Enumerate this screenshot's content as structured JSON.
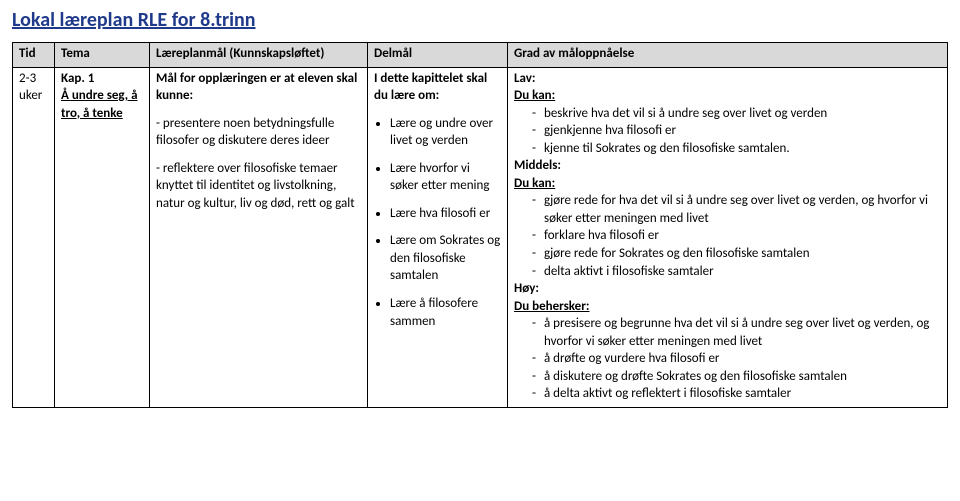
{
  "title": "Lokal læreplan RLE for 8.trinn",
  "headers": {
    "tid": "Tid",
    "tema": "Tema",
    "mal": "Læreplanmål (Kunnskapsløftet)",
    "del": "Delmål",
    "grad": "Grad av måloppnåelse"
  },
  "row": {
    "tid": "2-3 uker",
    "tema": {
      "kap": "Kap. 1",
      "title": "Å undre seg, å tro, å tenke"
    },
    "mal": {
      "intro_bold": "Mål for opplæringen er at eleven skal kunne:",
      "p1": "- presentere noen betydningsfulle filosofer og diskutere deres ideer",
      "p2": "- reflektere over filosofiske temaer knyttet til identitet og livstolkning, natur og kultur, liv og død, rett og galt"
    },
    "del": {
      "intro_bold": "I dette kapittelet skal du lære om:",
      "items": [
        "Lære og undre over livet og verden",
        "Lære hvorfor vi søker etter mening",
        "Lære hva filosofi er",
        "Lære om Sokrates og den filosofiske samtalen",
        "Lære å filosofere sammen"
      ]
    },
    "grad": {
      "lav_label": "Lav:",
      "dukan_label": "Du kan:",
      "lav_items": [
        "beskrive hva det vil si å undre seg over livet og verden",
        "gjenkjenne hva filosofi er",
        "kjenne til Sokrates og den filosofiske samtalen."
      ],
      "middels_label": "Middels:",
      "mid_items": [
        "gjøre rede for hva det vil si å undre seg over livet og verden, og hvorfor vi søker etter meningen med livet",
        "forklare hva filosofi er",
        "gjøre rede for Sokrates og den filosofiske samtalen",
        "delta aktivt i filosofiske samtaler"
      ],
      "hoy_label": "Høy:",
      "dubehersker_label": "Du behersker:",
      "hoy_items": [
        "å presisere og begrunne hva det vil si å undre seg over livet og verden, og hvorfor vi søker etter meningen med livet",
        "å drøfte og vurdere hva filosofi er",
        "å diskutere og drøfte Sokrates og den filosofiske samtalen",
        "å delta aktivt og reflektert i filosofiske samtaler"
      ]
    }
  }
}
